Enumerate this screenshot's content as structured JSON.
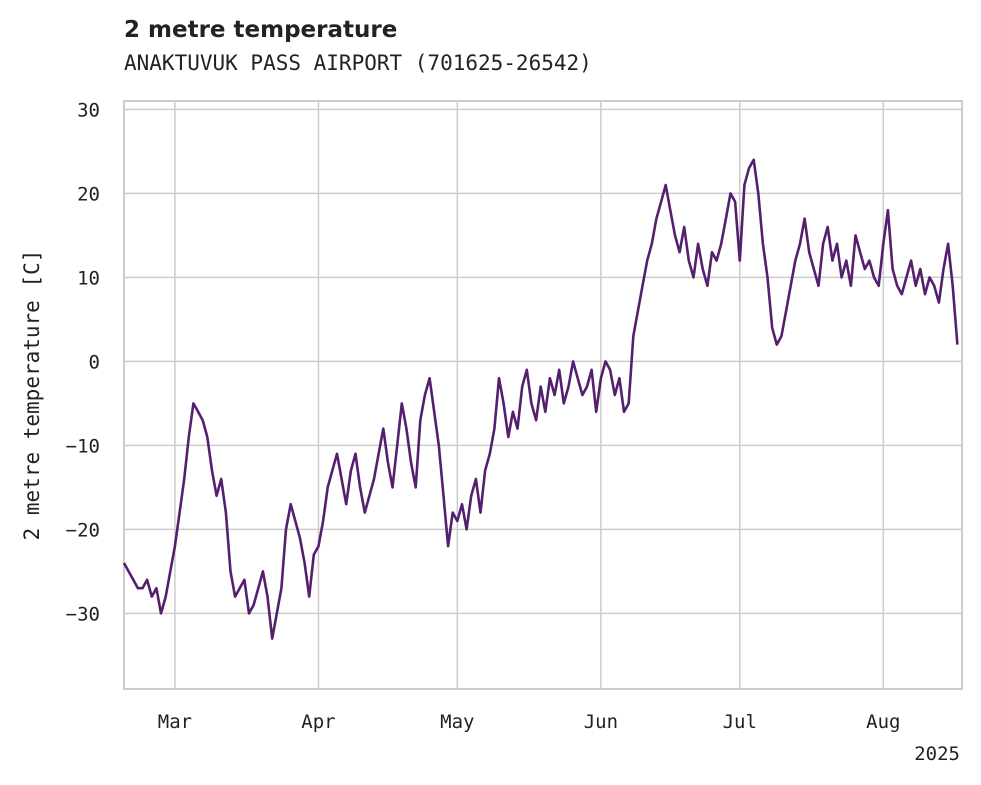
{
  "chart_data": {
    "type": "line",
    "title": "2 metre temperature",
    "subtitle": "ANAKTUVUK PASS AIRPORT (701625-26542)",
    "ylabel": "2 metre temperature [C]",
    "xlabel": "",
    "x_tick_labels": [
      "Mar",
      "Apr",
      "May",
      "Jun",
      "Jul",
      "Aug"
    ],
    "x_tick_dates": [
      "2025-03-01",
      "2025-04-01",
      "2025-05-01",
      "2025-06-01",
      "2025-07-01",
      "2025-08-01"
    ],
    "year_label": "2025",
    "y_ticks": [
      -30,
      -20,
      -10,
      0,
      10,
      20,
      30
    ],
    "xlim": [
      "2025-02-18",
      "2025-08-18"
    ],
    "ylim": [
      -39,
      31
    ],
    "grid": true,
    "line_color": "#541f6e",
    "series": [
      {
        "x": [
          "2025-02-18",
          "2025-02-19",
          "2025-02-20",
          "2025-02-21",
          "2025-02-22",
          "2025-02-23",
          "2025-02-24",
          "2025-02-25",
          "2025-02-26",
          "2025-02-27",
          "2025-02-28",
          "2025-03-01",
          "2025-03-02",
          "2025-03-03",
          "2025-03-04",
          "2025-03-05",
          "2025-03-06",
          "2025-03-07",
          "2025-03-08",
          "2025-03-09",
          "2025-03-10",
          "2025-03-11",
          "2025-03-12",
          "2025-03-13",
          "2025-03-14",
          "2025-03-15",
          "2025-03-16",
          "2025-03-17",
          "2025-03-18",
          "2025-03-19",
          "2025-03-20",
          "2025-03-21",
          "2025-03-22",
          "2025-03-23",
          "2025-03-24",
          "2025-03-25",
          "2025-03-26",
          "2025-03-27",
          "2025-03-28",
          "2025-03-29",
          "2025-03-30",
          "2025-03-31",
          "2025-04-01",
          "2025-04-02",
          "2025-04-03",
          "2025-04-04",
          "2025-04-05",
          "2025-04-06",
          "2025-04-07",
          "2025-04-08",
          "2025-04-09",
          "2025-04-10",
          "2025-04-11",
          "2025-04-12",
          "2025-04-13",
          "2025-04-14",
          "2025-04-15",
          "2025-04-16",
          "2025-04-17",
          "2025-04-18",
          "2025-04-19",
          "2025-04-20",
          "2025-04-21",
          "2025-04-22",
          "2025-04-23",
          "2025-04-24",
          "2025-04-25",
          "2025-04-26",
          "2025-04-27",
          "2025-04-28",
          "2025-04-29",
          "2025-04-30",
          "2025-05-01",
          "2025-05-02",
          "2025-05-03",
          "2025-05-04",
          "2025-05-05",
          "2025-05-06",
          "2025-05-07",
          "2025-05-08",
          "2025-05-09",
          "2025-05-10",
          "2025-05-11",
          "2025-05-12",
          "2025-05-13",
          "2025-05-14",
          "2025-05-15",
          "2025-05-16",
          "2025-05-17",
          "2025-05-18",
          "2025-05-19",
          "2025-05-20",
          "2025-05-21",
          "2025-05-22",
          "2025-05-23",
          "2025-05-24",
          "2025-05-25",
          "2025-05-26",
          "2025-05-27",
          "2025-05-28",
          "2025-05-29",
          "2025-05-30",
          "2025-05-31",
          "2025-06-01",
          "2025-06-02",
          "2025-06-03",
          "2025-06-04",
          "2025-06-05",
          "2025-06-06",
          "2025-06-07",
          "2025-06-08",
          "2025-06-09",
          "2025-06-10",
          "2025-06-11",
          "2025-06-12",
          "2025-06-13",
          "2025-06-14",
          "2025-06-15",
          "2025-06-16",
          "2025-06-17",
          "2025-06-18",
          "2025-06-19",
          "2025-06-20",
          "2025-06-21",
          "2025-06-22",
          "2025-06-23",
          "2025-06-24",
          "2025-06-25",
          "2025-06-26",
          "2025-06-27",
          "2025-06-28",
          "2025-06-29",
          "2025-06-30",
          "2025-07-01",
          "2025-07-02",
          "2025-07-03",
          "2025-07-04",
          "2025-07-05",
          "2025-07-06",
          "2025-07-07",
          "2025-07-08",
          "2025-07-09",
          "2025-07-10",
          "2025-07-11",
          "2025-07-12",
          "2025-07-13",
          "2025-07-14",
          "2025-07-15",
          "2025-07-16",
          "2025-07-17",
          "2025-07-18",
          "2025-07-19",
          "2025-07-20",
          "2025-07-21",
          "2025-07-22",
          "2025-07-23",
          "2025-07-24",
          "2025-07-25",
          "2025-07-26",
          "2025-07-27",
          "2025-07-28",
          "2025-07-29",
          "2025-07-30",
          "2025-07-31",
          "2025-08-01",
          "2025-08-02",
          "2025-08-03",
          "2025-08-04",
          "2025-08-05",
          "2025-08-06",
          "2025-08-07",
          "2025-08-08",
          "2025-08-09",
          "2025-08-10",
          "2025-08-11",
          "2025-08-12",
          "2025-08-13",
          "2025-08-14",
          "2025-08-15",
          "2025-08-16",
          "2025-08-17"
        ],
        "y": [
          -24,
          -25,
          -26,
          -27,
          -27,
          -26,
          -28,
          -27,
          -30,
          -28,
          -25,
          -22,
          -18,
          -14,
          -9,
          -5,
          -6,
          -7,
          -9,
          -13,
          -16,
          -14,
          -18,
          -25,
          -28,
          -27,
          -26,
          -30,
          -29,
          -27,
          -25,
          -28,
          -33,
          -30,
          -27,
          -20,
          -17,
          -19,
          -21,
          -24,
          -28,
          -23,
          -22,
          -19,
          -15,
          -13,
          -11,
          -14,
          -17,
          -13,
          -11,
          -15,
          -18,
          -16,
          -14,
          -11,
          -8,
          -12,
          -15,
          -10,
          -5,
          -8,
          -12,
          -15,
          -7,
          -4,
          -2,
          -6,
          -10,
          -16,
          -22,
          -18,
          -19,
          -17,
          -20,
          -16,
          -14,
          -18,
          -13,
          -11,
          -8,
          -2,
          -5,
          -9,
          -6,
          -8,
          -3,
          -1,
          -5,
          -7,
          -3,
          -6,
          -2,
          -4,
          -1,
          -5,
          -3,
          0,
          -2,
          -4,
          -3,
          -1,
          -6,
          -2,
          0,
          -1,
          -4,
          -2,
          -6,
          -5,
          3,
          6,
          9,
          12,
          14,
          17,
          19,
          21,
          18,
          15,
          13,
          16,
          12,
          10,
          14,
          11,
          9,
          13,
          12,
          14,
          17,
          20,
          19,
          12,
          21,
          23,
          24,
          20,
          14,
          10,
          4,
          2,
          3,
          6,
          9,
          12,
          14,
          17,
          13,
          11,
          9,
          14,
          16,
          12,
          14,
          10,
          12,
          9,
          15,
          13,
          11,
          12,
          10,
          9,
          14,
          18,
          11,
          9,
          8,
          10,
          12,
          9,
          11,
          8,
          10,
          9,
          7,
          11,
          14,
          9,
          2
        ]
      }
    ]
  }
}
